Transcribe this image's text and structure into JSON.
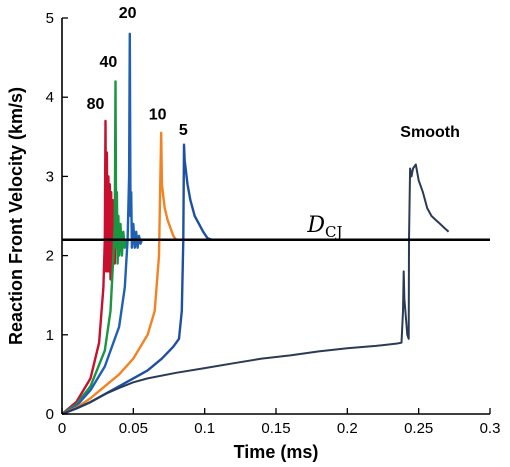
{
  "chart_data": {
    "type": "line",
    "xlabel": "Time (ms)",
    "ylabel": "Reaction Front Velocity (km/s)",
    "xlim": [
      0,
      0.3
    ],
    "ylim": [
      0,
      5
    ],
    "x_ticks": [
      "0",
      "0.05",
      "0.1",
      "0.15",
      "0.2",
      "0.25",
      "0.3"
    ],
    "y_ticks": [
      "0",
      "1",
      "2",
      "3",
      "4",
      "5"
    ],
    "grid": false,
    "reference_line": {
      "label": "D",
      "subscript": "CJ",
      "y": 2.2
    },
    "series": [
      {
        "name": "80",
        "color": "#c8102e",
        "x": [
          0,
          0.01,
          0.02,
          0.026,
          0.029,
          0.03,
          0.0305,
          0.031,
          0.0315,
          0.032,
          0.0325,
          0.033,
          0.0335,
          0.034,
          0.0345,
          0.035,
          0.0355,
          0.036,
          0.0365,
          0.037,
          0.0375,
          0.038
        ],
        "y": [
          0,
          0.15,
          0.45,
          0.9,
          1.6,
          2.2,
          3.7,
          1.8,
          3.3,
          1.8,
          3.0,
          1.8,
          2.9,
          1.7,
          2.8,
          1.8,
          2.7,
          1.9,
          2.7,
          1.9,
          2.5,
          2.2
        ]
      },
      {
        "name": "40",
        "color": "#1a9641",
        "x": [
          0,
          0.01,
          0.02,
          0.03,
          0.034,
          0.036,
          0.037,
          0.0375,
          0.038,
          0.0385,
          0.039,
          0.0395,
          0.04,
          0.041,
          0.042,
          0.043,
          0.044,
          0.045
        ],
        "y": [
          0,
          0.12,
          0.35,
          0.8,
          1.3,
          2.0,
          2.4,
          4.2,
          2.1,
          2.8,
          1.9,
          2.5,
          2.0,
          2.4,
          2.0,
          2.3,
          2.1,
          2.2
        ]
      },
      {
        "name": "20",
        "color": "#1f5fb4",
        "x": [
          0,
          0.01,
          0.02,
          0.03,
          0.04,
          0.044,
          0.046,
          0.047,
          0.0475,
          0.048,
          0.0485,
          0.049,
          0.05,
          0.051,
          0.052,
          0.053,
          0.054,
          0.055,
          0.056
        ],
        "y": [
          0,
          0.1,
          0.3,
          0.6,
          1.1,
          1.6,
          2.2,
          3.0,
          4.8,
          2.5,
          2.8,
          2.1,
          2.4,
          2.1,
          2.3,
          2.1,
          2.25,
          2.15,
          2.2
        ]
      },
      {
        "name": "10",
        "color": "#f58220",
        "x": [
          0,
          0.01,
          0.02,
          0.03,
          0.04,
          0.05,
          0.06,
          0.065,
          0.068,
          0.069,
          0.0695,
          0.07,
          0.072,
          0.074,
          0.076,
          0.078,
          0.08,
          0.082
        ],
        "y": [
          0,
          0.08,
          0.2,
          0.35,
          0.5,
          0.7,
          1.0,
          1.3,
          2.0,
          3.0,
          3.55,
          2.9,
          2.6,
          2.45,
          2.35,
          2.25,
          2.2,
          2.2
        ]
      },
      {
        "name": "5",
        "color": "#1e50a2",
        "x": [
          0,
          0.01,
          0.02,
          0.03,
          0.04,
          0.05,
          0.06,
          0.07,
          0.078,
          0.082,
          0.084,
          0.085,
          0.0855,
          0.086,
          0.088,
          0.09,
          0.093,
          0.096,
          0.099,
          0.102,
          0.105
        ],
        "y": [
          0,
          0.07,
          0.15,
          0.25,
          0.35,
          0.45,
          0.55,
          0.7,
          0.85,
          0.95,
          1.3,
          2.2,
          3.4,
          3.2,
          2.9,
          2.7,
          2.5,
          2.4,
          2.3,
          2.22,
          2.2
        ]
      },
      {
        "name": "Smooth",
        "color": "#2b3a55",
        "x": [
          0,
          0.01,
          0.02,
          0.03,
          0.04,
          0.05,
          0.06,
          0.08,
          0.1,
          0.12,
          0.14,
          0.16,
          0.18,
          0.2,
          0.22,
          0.235,
          0.238,
          0.239,
          0.2395,
          0.24,
          0.242,
          0.243,
          0.2432,
          0.244,
          0.245,
          0.246,
          0.248,
          0.25,
          0.253,
          0.256,
          0.259,
          0.262,
          0.265,
          0.268,
          0.271
        ],
        "y": [
          0,
          0.07,
          0.15,
          0.25,
          0.33,
          0.4,
          0.45,
          0.52,
          0.58,
          0.64,
          0.7,
          0.74,
          0.79,
          0.83,
          0.86,
          0.89,
          0.9,
          1.3,
          1.8,
          1.45,
          1.0,
          0.95,
          2.2,
          3.1,
          3.0,
          3.1,
          3.15,
          2.95,
          2.8,
          2.6,
          2.5,
          2.45,
          2.4,
          2.35,
          2.3
        ]
      }
    ],
    "series_labels": [
      {
        "series": "80",
        "x": 0.0235,
        "y": 3.85
      },
      {
        "series": "40",
        "x": 0.0325,
        "y": 4.38
      },
      {
        "series": "20",
        "x": 0.046,
        "y": 5.0
      },
      {
        "series": "10",
        "x": 0.067,
        "y": 3.72
      },
      {
        "series": "5",
        "x": 0.085,
        "y": 3.52
      },
      {
        "series": "Smooth",
        "x": 0.258,
        "y": 3.5
      }
    ]
  }
}
